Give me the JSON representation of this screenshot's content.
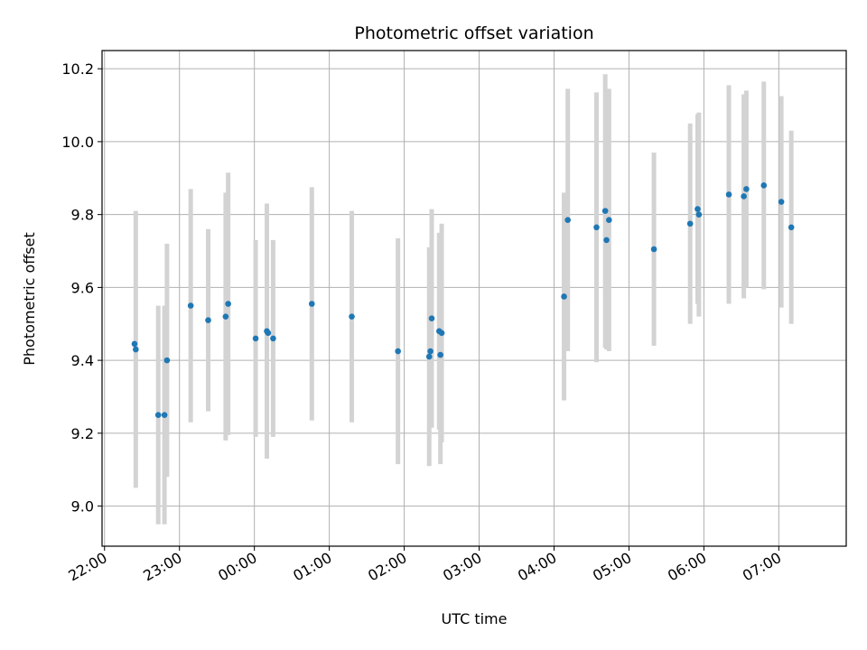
{
  "chart_data": {
    "type": "scatter",
    "title": "Photometric offset variation",
    "xlabel": "UTC time",
    "ylabel": "Photometric offset",
    "x_ticks": [
      "22:00",
      "23:00",
      "00:00",
      "01:00",
      "02:00",
      "03:00",
      "04:00",
      "05:00",
      "06:00",
      "07:00"
    ],
    "y_ticks": [
      "9.0",
      "9.2",
      "9.4",
      "9.6",
      "9.8",
      "10.0",
      "10.2"
    ],
    "y_tick_values": [
      9.0,
      9.2,
      9.4,
      9.6,
      9.8,
      10.0,
      10.2
    ],
    "xlim": [
      "21:58",
      "07:54"
    ],
    "ylim": [
      8.89,
      10.25
    ],
    "grid": true,
    "errorbar_color": "#d3d3d3",
    "point_color": "#1f77b4",
    "points": [
      {
        "x": "22:24",
        "y": 9.445,
        "err": 0.0
      },
      {
        "x": "22:25",
        "y": 9.43,
        "err": 0.38
      },
      {
        "x": "22:43",
        "y": 9.25,
        "err": 0.3
      },
      {
        "x": "22:48",
        "y": 9.25,
        "err": 0.3
      },
      {
        "x": "22:50",
        "y": 9.4,
        "err": 0.32
      },
      {
        "x": "23:09",
        "y": 9.55,
        "err": 0.32
      },
      {
        "x": "23:23",
        "y": 9.51,
        "err": 0.25
      },
      {
        "x": "23:37",
        "y": 9.52,
        "err": 0.34
      },
      {
        "x": "23:39",
        "y": 9.555,
        "err": 0.36
      },
      {
        "x": "00:01",
        "y": 9.46,
        "err": 0.27
      },
      {
        "x": "00:10",
        "y": 9.48,
        "err": 0.35
      },
      {
        "x": "00:11",
        "y": 9.475,
        "err": 0.0
      },
      {
        "x": "00:15",
        "y": 9.46,
        "err": 0.27
      },
      {
        "x": "00:46",
        "y": 9.555,
        "err": 0.32
      },
      {
        "x": "01:18",
        "y": 9.52,
        "err": 0.29
      },
      {
        "x": "01:55",
        "y": 9.425,
        "err": 0.31
      },
      {
        "x": "02:20",
        "y": 9.41,
        "err": 0.3
      },
      {
        "x": "02:21",
        "y": 9.425,
        "err": 0.0
      },
      {
        "x": "02:22",
        "y": 9.515,
        "err": 0.3
      },
      {
        "x": "02:28",
        "y": 9.48,
        "err": 0.27
      },
      {
        "x": "02:29",
        "y": 9.415,
        "err": 0.3
      },
      {
        "x": "02:30",
        "y": 9.475,
        "err": 0.3
      },
      {
        "x": "04:08",
        "y": 9.575,
        "err": 0.285
      },
      {
        "x": "04:11",
        "y": 9.785,
        "err": 0.36
      },
      {
        "x": "04:34",
        "y": 9.765,
        "err": 0.37
      },
      {
        "x": "04:41",
        "y": 9.81,
        "err": 0.375
      },
      {
        "x": "04:42",
        "y": 9.73,
        "err": 0.3
      },
      {
        "x": "04:44",
        "y": 9.785,
        "err": 0.36
      },
      {
        "x": "05:20",
        "y": 9.705,
        "err": 0.265
      },
      {
        "x": "05:49",
        "y": 9.775,
        "err": 0.275
      },
      {
        "x": "05:55",
        "y": 9.815,
        "err": 0.26
      },
      {
        "x": "05:56",
        "y": 9.8,
        "err": 0.28
      },
      {
        "x": "06:20",
        "y": 9.855,
        "err": 0.3
      },
      {
        "x": "06:32",
        "y": 9.85,
        "err": 0.28
      },
      {
        "x": "06:34",
        "y": 9.87,
        "err": 0.27
      },
      {
        "x": "06:48",
        "y": 9.88,
        "err": 0.285
      },
      {
        "x": "07:02",
        "y": 9.835,
        "err": 0.29
      },
      {
        "x": "07:10",
        "y": 9.765,
        "err": 0.265
      }
    ]
  }
}
